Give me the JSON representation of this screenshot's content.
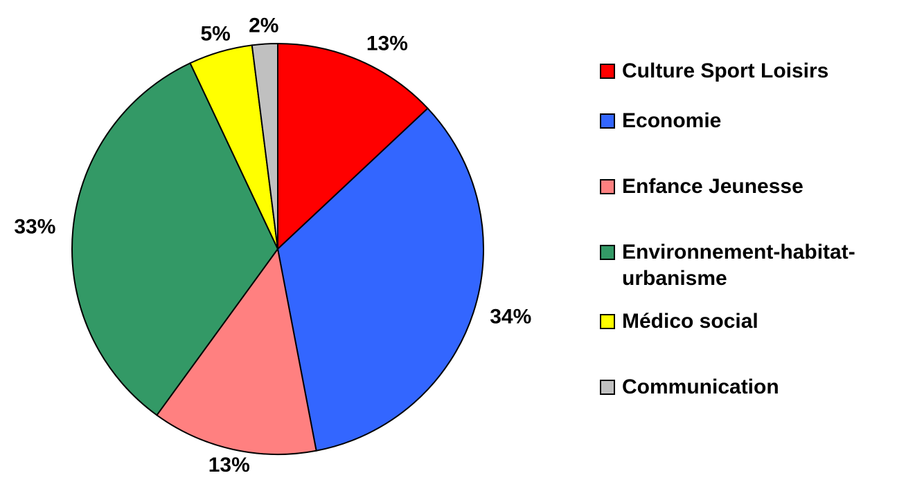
{
  "chart_data": {
    "type": "pie",
    "categories": [
      "Culture Sport Loisirs",
      "Economie",
      "Enfance Jeunesse",
      "Environnement-habitat-urbanisme",
      "Médico social",
      "Communication"
    ],
    "values": [
      13,
      34,
      13,
      33,
      5,
      2
    ],
    "value_labels": [
      "13%",
      "34%",
      "13%",
      "33%",
      "5%",
      "2%"
    ],
    "colors": [
      "#ff0000",
      "#3366ff",
      "#ff8080",
      "#339966",
      "#ffff00",
      "#c0c0c0"
    ],
    "legend": "right"
  }
}
